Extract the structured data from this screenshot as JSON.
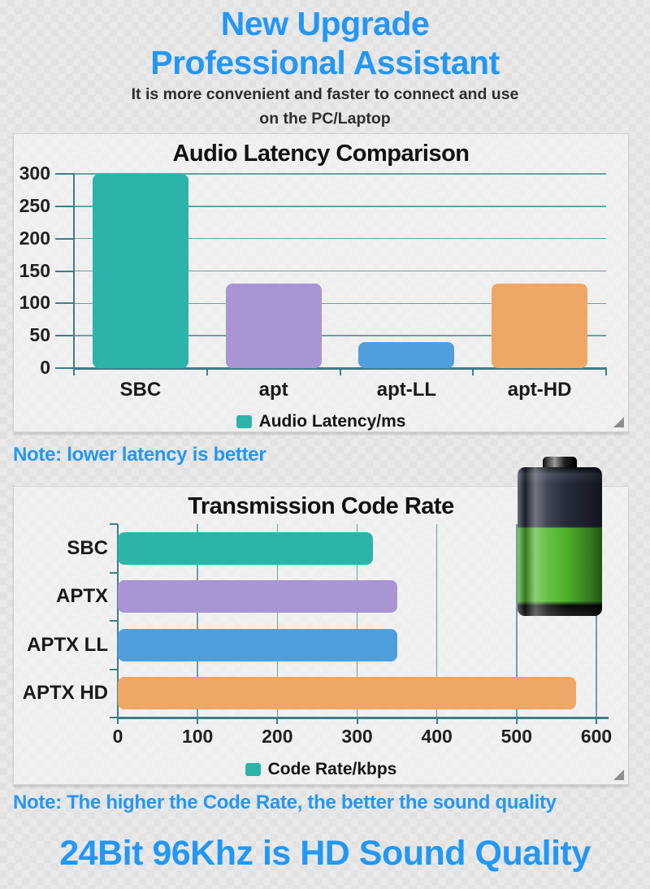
{
  "page": {
    "title_line1": "New Upgrade",
    "title_line2": "Professional Assistant",
    "subtitle_line1": "It is more convenient and faster to connect and use",
    "subtitle_line2": "on the PC/Laptop",
    "note_latency": "Note: lower latency is better",
    "note_code_rate": "Note: The higher the Code Rate, the better the sound quality",
    "footer_headline": "24Bit 96Khz is HD Sound Quality",
    "accent_blue": "#2497f3"
  },
  "chart_data": [
    {
      "type": "bar",
      "title": "Audio Latency Comparison",
      "categories": [
        "SBC",
        "apt",
        "apt-LL",
        "apt-HD"
      ],
      "values": [
        300,
        130,
        40,
        130
      ],
      "bar_colors": [
        "#2cb4ab",
        "#a995d4",
        "#4f9fdc",
        "#eea766"
      ],
      "legend": "Audio Latency/ms",
      "legend_color": "#2cb4ab",
      "y_ticks": [
        0,
        50,
        100,
        150,
        200,
        250,
        300
      ],
      "ylim": [
        0,
        300
      ],
      "grid": true,
      "legend_position": "bottom",
      "grid_color": "#69a0a8",
      "axis_color": "#3e7e86"
    },
    {
      "type": "bar-horizontal",
      "title": "Transmission Code Rate",
      "categories": [
        "SBC",
        "APTX",
        "APTX LL",
        "APTX HD"
      ],
      "values": [
        320,
        350,
        350,
        575
      ],
      "bar_colors": [
        "#2cb4ab",
        "#a995d4",
        "#4f9fdc",
        "#eea766"
      ],
      "legend": "Code Rate/kbps",
      "legend_color": "#2cb4ab",
      "x_ticks": [
        0,
        100,
        200,
        300,
        400,
        500,
        600
      ],
      "xlim": [
        0,
        600
      ],
      "grid": true,
      "legend_position": "bottom",
      "grid_color": "#69a0a8",
      "axis_color": "#3e7e86"
    }
  ],
  "battery": {
    "shell_color": "#262c3e",
    "charge_color": "#50b82c",
    "cap_color": "#0a0a0a"
  }
}
